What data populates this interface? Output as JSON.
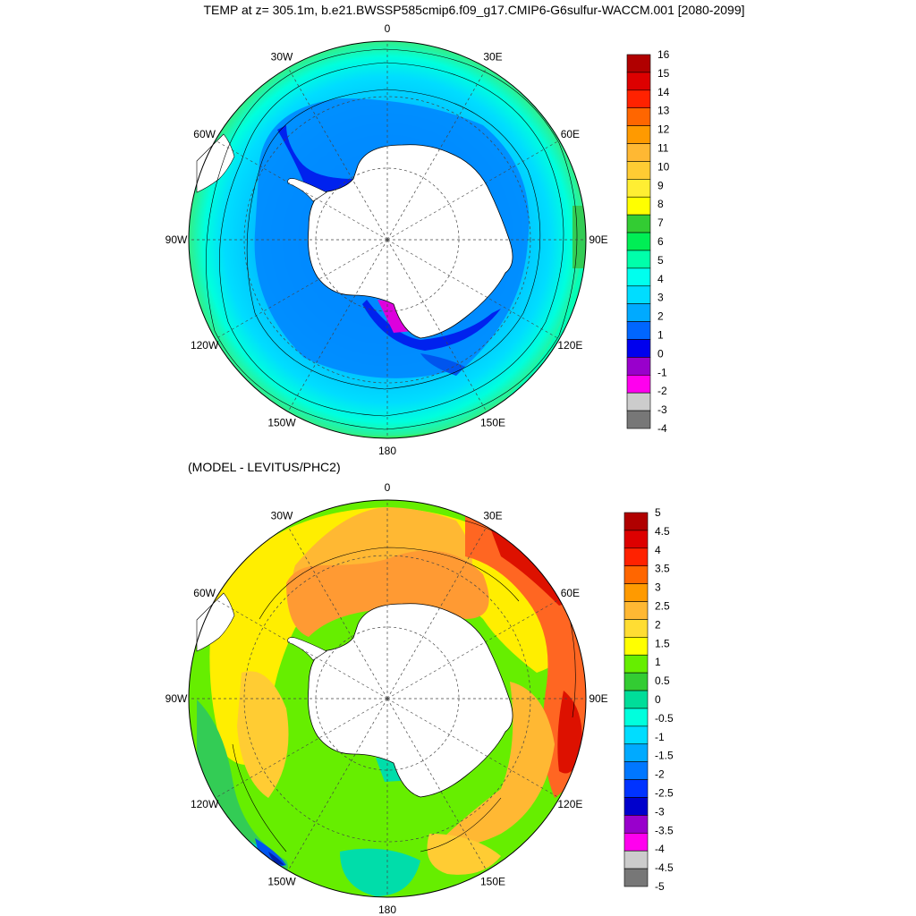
{
  "title": "TEMP at z= 305.1m, b.e21.BWSSP585cmip6.f09_g17.CMIP6-G6sulfur-WACCM.001 [2080-2099]",
  "diff_title": "(MODEL - LEVITUS/PHC2)",
  "longitude_labels": [
    "0",
    "30E",
    "60E",
    "90E",
    "120E",
    "150E",
    "180",
    "150W",
    "120W",
    "90W",
    "60W",
    "30W"
  ],
  "colors": {
    "land": "#ffffff",
    "coast": "#000000",
    "grid": "#555555"
  },
  "top_map": {
    "colorbar_labels": [
      "16",
      "15",
      "14",
      "13",
      "12",
      "11",
      "10",
      "9",
      "8",
      "7",
      "6",
      "5",
      "4",
      "3",
      "2",
      "1",
      "0",
      "-1",
      "-2",
      "-3",
      "-4"
    ],
    "colorbar_colors": [
      "#b00000",
      "#dd0000",
      "#ff2200",
      "#ff6600",
      "#ff9a00",
      "#ffb833",
      "#ffcc33",
      "#ffee33",
      "#ffff00",
      "#33cc33",
      "#00ee55",
      "#00ffaa",
      "#00ffee",
      "#00ddff",
      "#00aaff",
      "#0066ff",
      "#0000ee",
      "#9900cc",
      "#ff00ee",
      "#cccccc",
      "#777777"
    ]
  },
  "bottom_map": {
    "colorbar_labels": [
      "5",
      "4.5",
      "4",
      "3.5",
      "3",
      "2.5",
      "2",
      "1.5",
      "1",
      "0.5",
      "0",
      "-0.5",
      "-1",
      "-1.5",
      "-2",
      "-2.5",
      "-3",
      "-3.5",
      "-4",
      "-4.5",
      "-5"
    ],
    "colorbar_colors": [
      "#b00000",
      "#dd0000",
      "#ff2200",
      "#ff6600",
      "#ff9a00",
      "#ffb833",
      "#ffdd33",
      "#ffff00",
      "#66ee00",
      "#33cc33",
      "#00dd99",
      "#00ffdd",
      "#00ddff",
      "#00aaff",
      "#0077ff",
      "#0033ff",
      "#0000cc",
      "#9900cc",
      "#ff00ee",
      "#cccccc",
      "#777777"
    ]
  }
}
